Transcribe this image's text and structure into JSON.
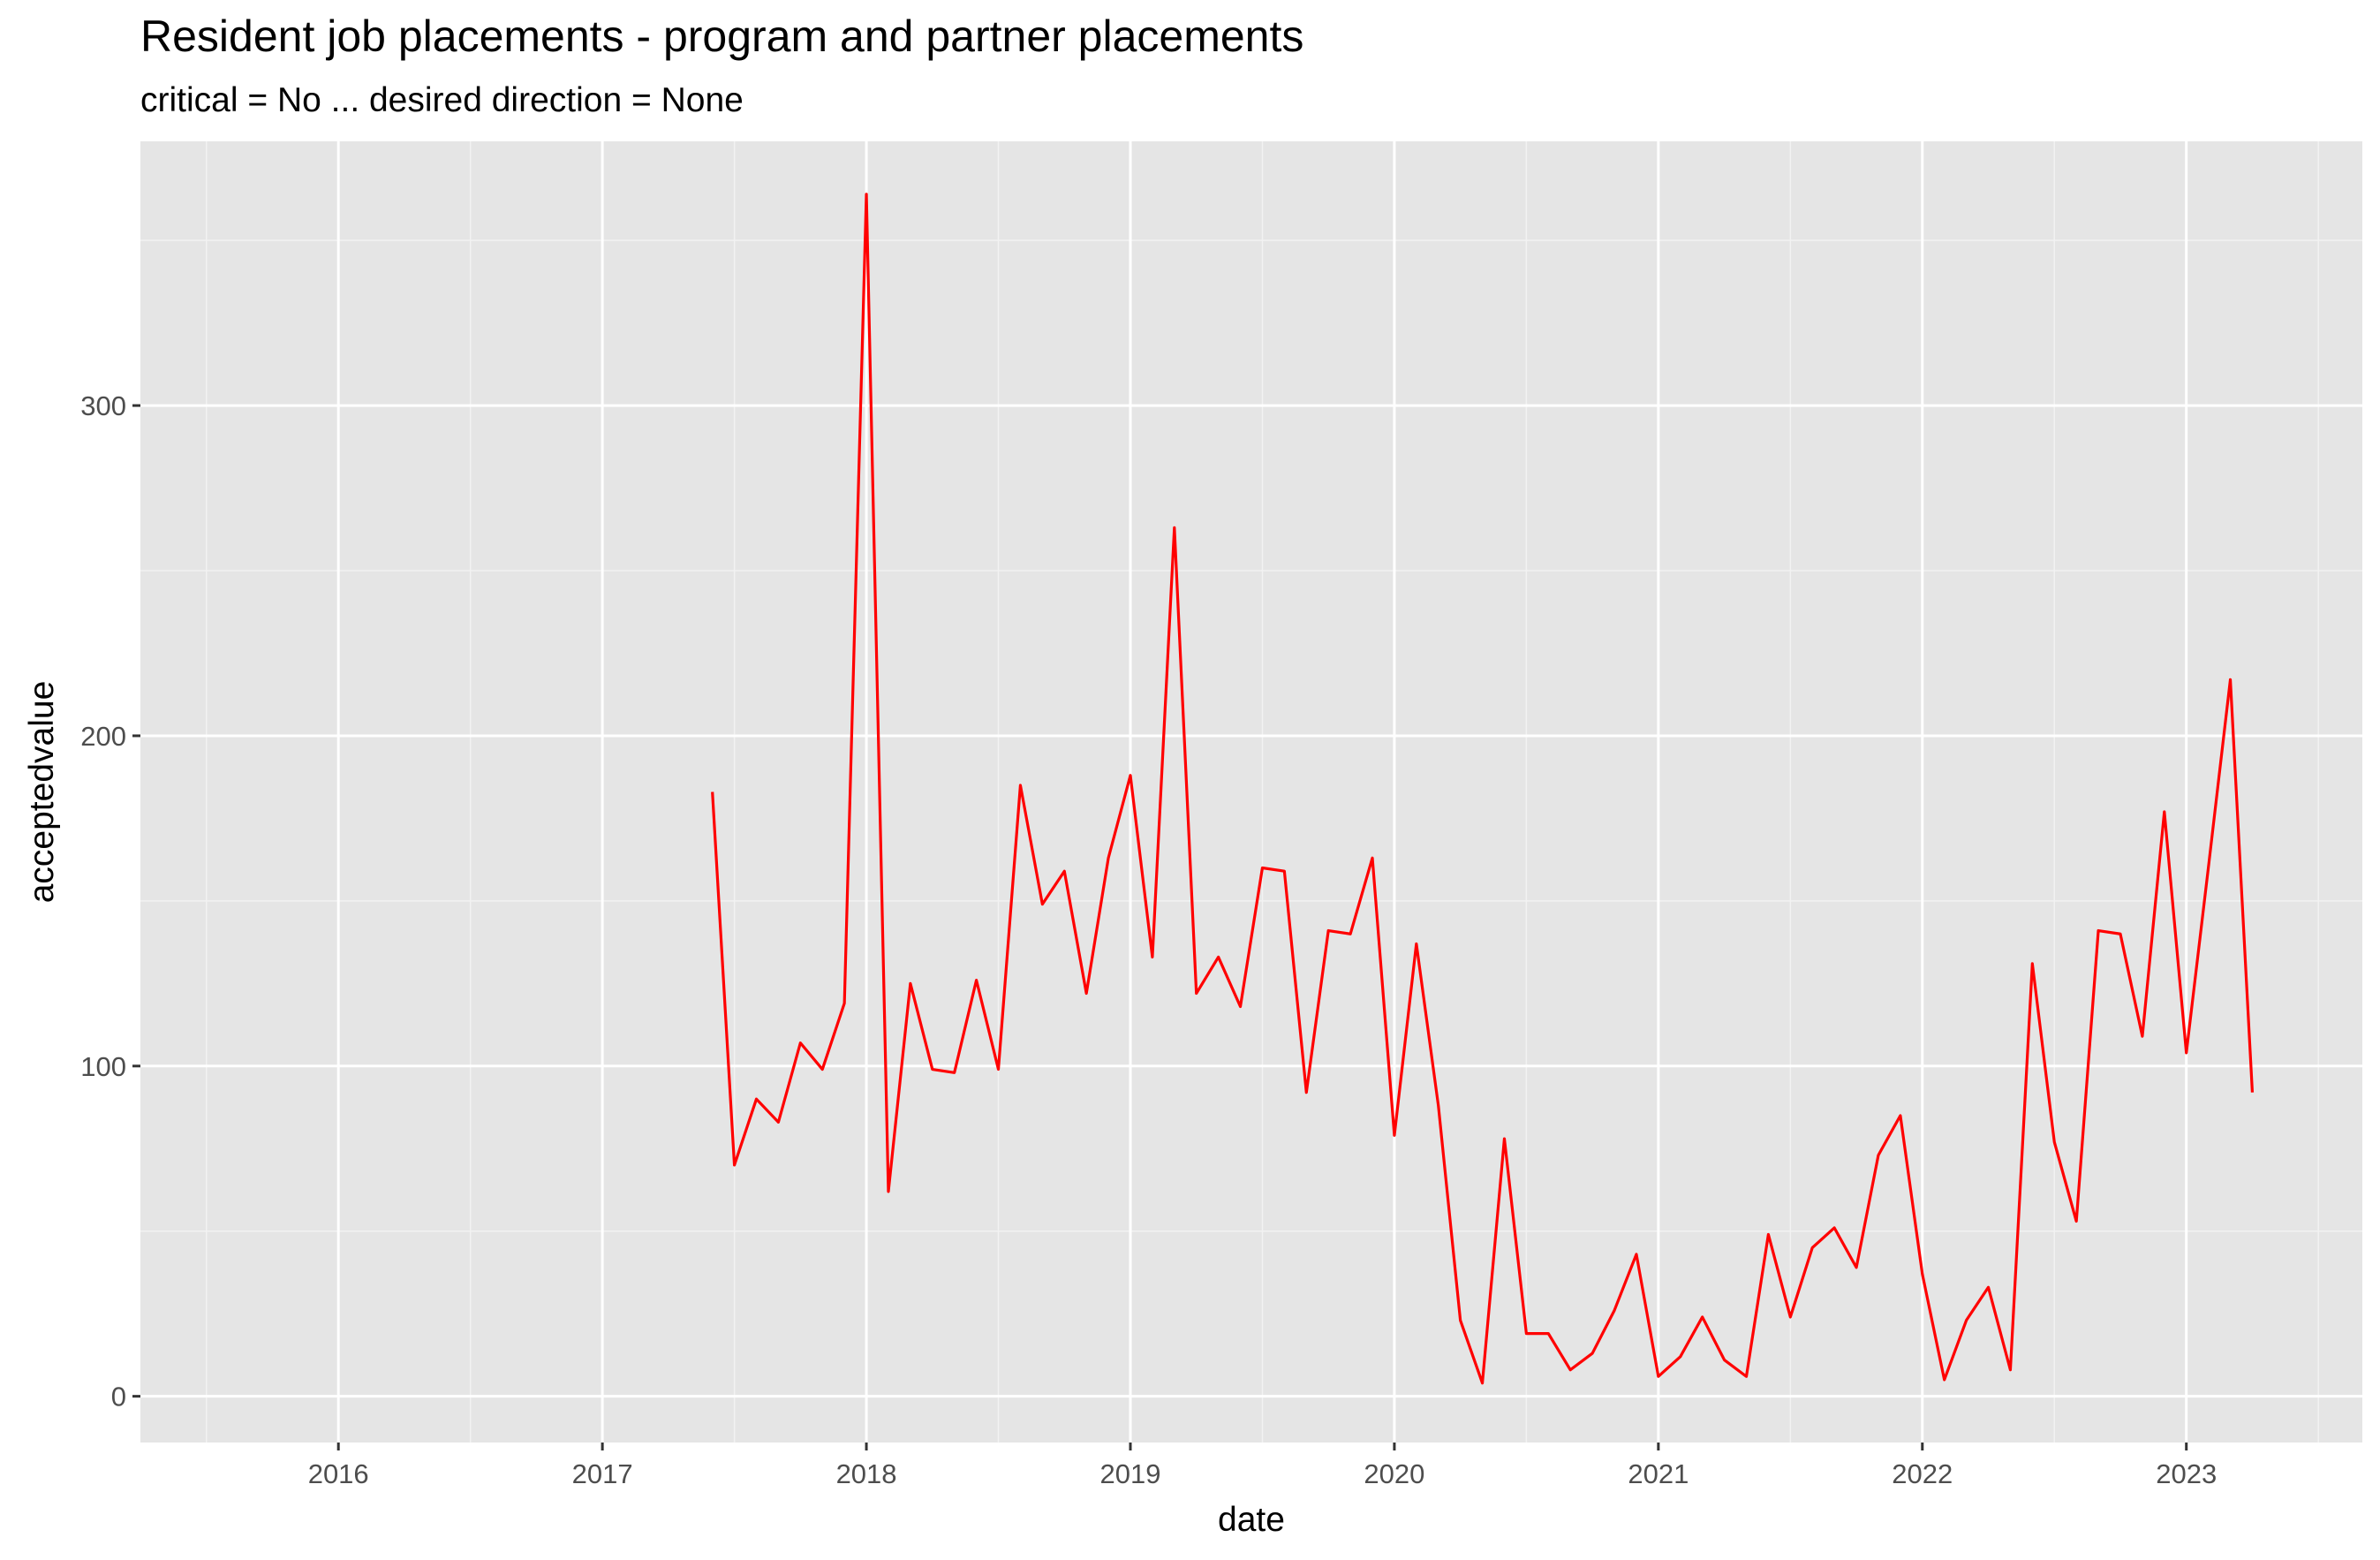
{
  "chart_data": {
    "type": "line",
    "title": "Resident job placements - program and partner placements",
    "subtitle": "critical = No ... desired direction = None",
    "xlabel": "date",
    "ylabel": "acceptedvalue",
    "x_ticks": [
      "2016",
      "2017",
      "2018",
      "2019",
      "2020",
      "2021",
      "2022",
      "2023"
    ],
    "y_ticks": [
      0,
      100,
      200,
      300
    ],
    "xlim": [
      "2015-04",
      "2023-09"
    ],
    "ylim": [
      -14,
      380
    ],
    "grid": true,
    "legend": "none",
    "series": [
      {
        "color": "#ff0000",
        "points": [
          [
            "2017-06",
            183
          ],
          [
            "2017-07",
            70
          ],
          [
            "2017-08",
            90
          ],
          [
            "2017-09",
            83
          ],
          [
            "2017-10",
            107
          ],
          [
            "2017-11",
            99
          ],
          [
            "2017-12",
            119
          ],
          [
            "2018-01",
            364
          ],
          [
            "2018-02",
            62
          ],
          [
            "2018-03",
            125
          ],
          [
            "2018-04",
            99
          ],
          [
            "2018-05",
            98
          ],
          [
            "2018-06",
            126
          ],
          [
            "2018-07",
            99
          ],
          [
            "2018-08",
            185
          ],
          [
            "2018-09",
            149
          ],
          [
            "2018-10",
            159
          ],
          [
            "2018-11",
            122
          ],
          [
            "2018-12",
            163
          ],
          [
            "2019-01",
            188
          ],
          [
            "2019-02",
            133
          ],
          [
            "2019-03",
            263
          ],
          [
            "2019-04",
            122
          ],
          [
            "2019-05",
            133
          ],
          [
            "2019-06",
            118
          ],
          [
            "2019-07",
            160
          ],
          [
            "2019-08",
            159
          ],
          [
            "2019-09",
            92
          ],
          [
            "2019-10",
            141
          ],
          [
            "2019-11",
            140
          ],
          [
            "2019-12",
            163
          ],
          [
            "2020-01",
            79
          ],
          [
            "2020-02",
            137
          ],
          [
            "2020-03",
            88
          ],
          [
            "2020-04",
            23
          ],
          [
            "2020-05",
            4
          ],
          [
            "2020-06",
            78
          ],
          [
            "2020-07",
            19
          ],
          [
            "2020-08",
            19
          ],
          [
            "2020-09",
            8
          ],
          [
            "2020-10",
            13
          ],
          [
            "2020-11",
            26
          ],
          [
            "2020-12",
            43
          ],
          [
            "2021-01",
            6
          ],
          [
            "2021-02",
            12
          ],
          [
            "2021-03",
            24
          ],
          [
            "2021-04",
            11
          ],
          [
            "2021-05",
            6
          ],
          [
            "2021-06",
            49
          ],
          [
            "2021-07",
            24
          ],
          [
            "2021-08",
            45
          ],
          [
            "2021-09",
            51
          ],
          [
            "2021-10",
            39
          ],
          [
            "2021-11",
            73
          ],
          [
            "2021-12",
            85
          ],
          [
            "2022-01",
            37
          ],
          [
            "2022-02",
            5
          ],
          [
            "2022-03",
            23
          ],
          [
            "2022-04",
            33
          ],
          [
            "2022-05",
            8
          ],
          [
            "2022-06",
            131
          ],
          [
            "2022-07",
            77
          ],
          [
            "2022-08",
            53
          ],
          [
            "2022-09",
            141
          ],
          [
            "2022-10",
            140
          ],
          [
            "2022-11",
            109
          ],
          [
            "2022-12",
            177
          ],
          [
            "2023-01",
            104
          ],
          [
            "2023-02",
            160
          ],
          [
            "2023-03",
            217
          ],
          [
            "2023-04",
            92
          ]
        ]
      }
    ]
  }
}
